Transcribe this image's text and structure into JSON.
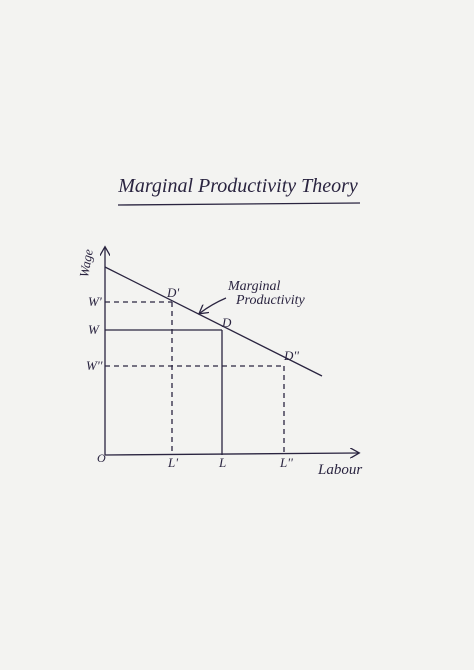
{
  "title": "Marginal Productivity Theory",
  "axes": {
    "y_label": "Wage",
    "x_label": "Labour",
    "origin": "O"
  },
  "curve": {
    "label": [
      "Marginal",
      "Productivity"
    ]
  },
  "points": [
    {
      "label": "D'",
      "wage": "W'",
      "labour": "L'"
    },
    {
      "label": "D",
      "wage": "W",
      "labour": "L"
    },
    {
      "label": "D''",
      "wage": "W''",
      "labour": "L''"
    }
  ]
}
